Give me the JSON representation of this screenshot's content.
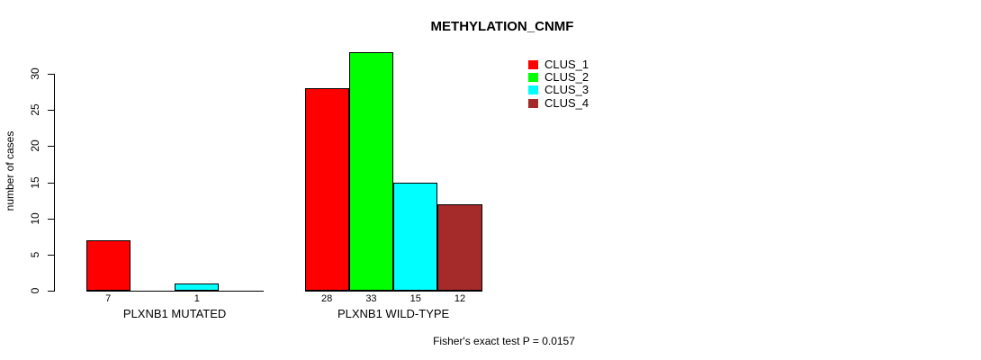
{
  "chart_data": {
    "type": "bar",
    "title": "METHYLATION_CNMF",
    "ylabel": "number of cases",
    "xlabel": "",
    "categories": [
      "PLXNB1 MUTATED",
      "PLXNB1 WILD-TYPE"
    ],
    "series": [
      {
        "name": "CLUS_1",
        "color": "#ff0000",
        "values": [
          7,
          28
        ]
      },
      {
        "name": "CLUS_2",
        "color": "#00ff00",
        "values": [
          0,
          33
        ]
      },
      {
        "name": "CLUS_3",
        "color": "#00ffff",
        "values": [
          1,
          15
        ]
      },
      {
        "name": "CLUS_4",
        "color": "#a52a2a",
        "values": [
          0,
          12
        ]
      }
    ],
    "bar_value_labels": [
      [
        7,
        null,
        1,
        null
      ],
      [
        28,
        33,
        15,
        12
      ]
    ],
    "show_zero_value_labels": false,
    "yticks": [
      0,
      5,
      10,
      15,
      20,
      25,
      30
    ],
    "ylim": [
      0,
      33
    ],
    "grid": false,
    "legend_position": "top-right",
    "legend_entries": [
      "CLUS_1",
      "CLUS_2",
      "CLUS_3",
      "CLUS_4"
    ],
    "annotation": "Fisher's exact test P = 0.0157",
    "axis_color": "#000000",
    "background_color": "#ffffff"
  }
}
